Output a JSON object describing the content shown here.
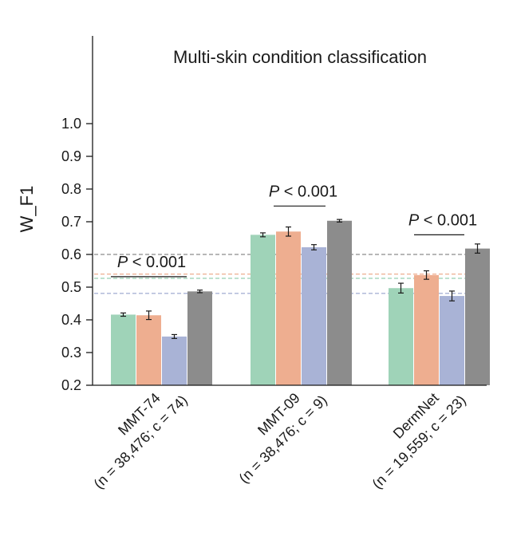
{
  "chart_data": {
    "type": "bar",
    "title": "Multi-skin condition classification",
    "ylabel": "W_F1",
    "xlabel": "",
    "ylim": [
      0.2,
      1.0
    ],
    "yticks": [
      "0.2",
      "0.3",
      "0.4",
      "0.5",
      "0.6",
      "0.7",
      "0.8",
      "0.9",
      "1.0"
    ],
    "grid": false,
    "categories": [
      {
        "name": "MMT-74",
        "detail": "(n = 38,476; c = 74)"
      },
      {
        "name": "MMT-09",
        "detail": "(n = 38,476; c = 9)"
      },
      {
        "name": "DermNet",
        "detail": "(n = 19,559; c = 23)"
      }
    ],
    "series": [
      {
        "color": "#9fd3b8",
        "values": [
          0.416,
          0.66,
          0.497
        ],
        "errors": [
          0.005,
          0.006,
          0.015
        ]
      },
      {
        "color": "#eeae90",
        "values": [
          0.414,
          0.67,
          0.537
        ],
        "errors": [
          0.013,
          0.014,
          0.013
        ]
      },
      {
        "color": "#a9b3d6",
        "values": [
          0.349,
          0.622,
          0.473
        ],
        "errors": [
          0.006,
          0.008,
          0.015
        ]
      },
      {
        "color": "#8c8c8c",
        "values": [
          0.487,
          0.703,
          0.618
        ],
        "errors": [
          0.004,
          0.004,
          0.014
        ]
      }
    ],
    "reference_lines": [
      {
        "value": 0.6,
        "color": "#8c8c8c"
      },
      {
        "value": 0.54,
        "color": "#eeae90"
      },
      {
        "value": 0.527,
        "color": "#9fd3b8"
      },
      {
        "value": 0.481,
        "color": "#a9b3d6"
      }
    ],
    "annotations": [
      {
        "text": "P < 0.001",
        "category": 0,
        "y": 0.532
      },
      {
        "text": "P < 0.001",
        "category": 1,
        "y": 0.748
      },
      {
        "text": "P < 0.001",
        "category": 2,
        "y": 0.66
      }
    ]
  }
}
